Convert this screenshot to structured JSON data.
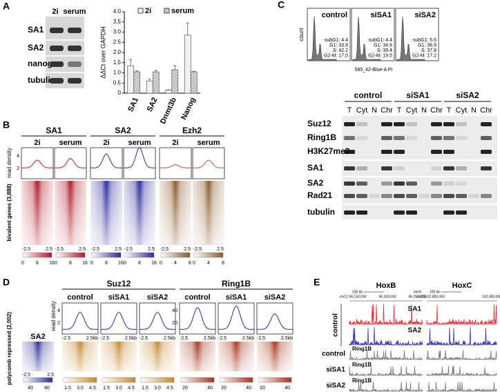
{
  "chart_data": {
    "type": "bar",
    "y_label": "ΔΔCt over GAPDH",
    "categories": [
      "SA1",
      "SA2",
      "Dnmt3b",
      "Nanog"
    ],
    "series": [
      {
        "name": "2i",
        "color": "#f2f2f2",
        "values": [
          1.35,
          0.6,
          0.15,
          2.85
        ],
        "errors": [
          0.3,
          0.1,
          0.02,
          0.6
        ]
      },
      {
        "name": "serum",
        "color": "#b0b0b0",
        "values": [
          1.05,
          1.05,
          1.15,
          1.05
        ],
        "errors": [
          0.05,
          0.07,
          0.2,
          0.03
        ]
      }
    ],
    "ylim": [
      0,
      4
    ],
    "yticks": [
      0,
      0.5,
      {
        "value": 1,
        "label": "1.0"
      },
      1.5,
      {
        "value": 2,
        "label": "2.0"
      },
      2.5,
      {
        "value": 3,
        "label": "3.0"
      },
      3.5,
      {
        "value": 4,
        "label": "4.0"
      }
    ]
  },
  "figure": {
    "panel_labels": [
      "A",
      "B",
      "C",
      "D",
      "E"
    ],
    "A": {
      "blot_columns": [
        "2i",
        "serum"
      ],
      "blot_rows": [
        "SA1",
        "SA2",
        "nanog",
        "tubulin"
      ]
    },
    "B": {
      "groups": [
        "SA1",
        "SA2",
        "Ezh2"
      ],
      "conditions": [
        "2i",
        "serum"
      ],
      "y_label": "read density",
      "y_ticks": [
        "2",
        "4"
      ],
      "x_ticks": [
        "-2.5",
        "2.5"
      ],
      "row_label": "bivalent genes (3,888)",
      "colorbar_ticks": [
        [
          "0",
          "8",
          "16"
        ],
        [
          "0",
          "8",
          "16"
        ],
        [
          "0",
          "4",
          "8"
        ]
      ]
    },
    "C": {
      "flow": [
        {
          "name": "control",
          "stats": [
            "subG1: 4.4",
            "G1: 33.8",
            "S: 42.2",
            "G2-M: 17.0"
          ]
        },
        {
          "name": "siSA1",
          "stats": [
            "subG1: 4.4",
            "G1: 34.6",
            "S: 39.4",
            "G2-M: 19.5"
          ]
        },
        {
          "name": "siSA2",
          "stats": [
            "subG1: 5.5",
            "G1: 36.9",
            "S: 37.8",
            "G2-M: 17.2"
          ]
        }
      ],
      "flow_y_label": "count",
      "flow_x_label": "585_42-Blue-A PI",
      "groups": [
        "control",
        "siSA1",
        "siSA2"
      ],
      "lanes": [
        "T",
        "Cyt",
        "N",
        "Chr"
      ],
      "rows": [
        "Suz12",
        "Ring1B",
        "H3K27me3",
        "SA1",
        "SA2",
        "Rad21",
        "tubulin"
      ]
    },
    "D": {
      "groups": [
        "Suz12",
        "Ring1B"
      ],
      "conditions": [
        "control",
        "siSA1",
        "siSA2"
      ],
      "y_label": "read density",
      "suz12_y_ticks": [
        "2",
        "4"
      ],
      "ring1b_y_ticks": [
        "20",
        "40"
      ],
      "profile_x_ticks": [
        "-2.5",
        "2.5kb"
      ],
      "heatmap_label": "SA2",
      "heatmap_x_ticks": [
        "-2.5",
        "2.5"
      ],
      "row_label": "polycomb repressed (2,002)",
      "sa2_colorbar_ticks": [
        "40",
        "80"
      ],
      "suz12_colorbar_ticks": [
        "1.5",
        "3.0",
        "4.5"
      ],
      "ring1b_colorbar_ticks": [
        "20",
        "40"
      ]
    },
    "E": {
      "loci": [
        {
          "name": "HoxB",
          "scale": "100 kb",
          "genome": "mm9",
          "chrom": "chr11:",
          "coords": [
            "96,150,000",
            "96,200,000",
            "96,250,000"
          ]
        },
        {
          "name": "HoxC",
          "scale": "100 kb",
          "chrom": "chr15:",
          "coords": [
            "102,800,000",
            "102,900,000"
          ]
        }
      ],
      "control_label": "control",
      "tracks": [
        "SA1",
        "SA2"
      ],
      "ring1b_rows": [
        {
          "name": "control",
          "track": "Ring1B"
        },
        {
          "name": "siSA1",
          "track": "Ring1B"
        },
        {
          "name": "siSA2",
          "track": "Ring1B"
        }
      ]
    }
  }
}
